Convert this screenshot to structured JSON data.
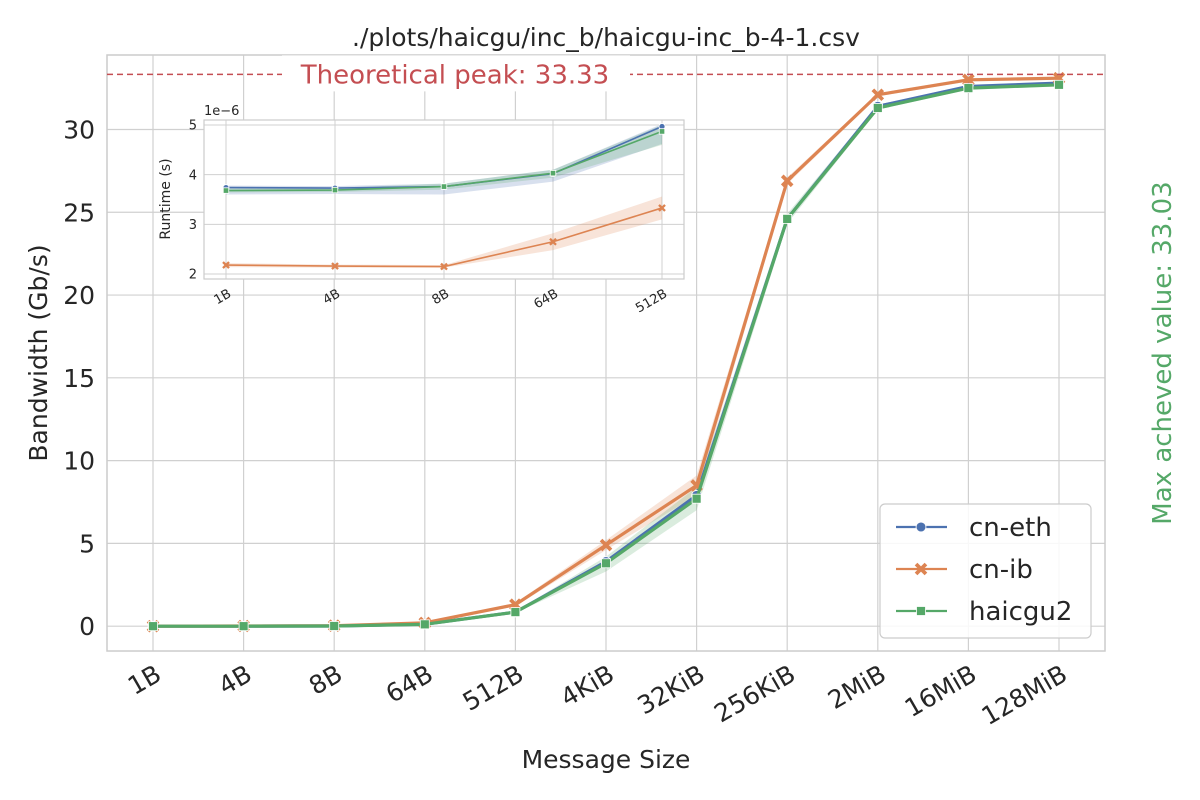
{
  "colors": {
    "cn-eth": "#4c72b0",
    "cn-ib": "#dd8452",
    "haicgu2": "#55a868",
    "peak": "#c44e52",
    "grid": "#d0d0d0",
    "spine": "#cccccc",
    "text": "#262626"
  },
  "chart_data": [
    {
      "type": "line",
      "title": "./plots/haicgu/inc_b/haicgu-inc_b-4-1.csv",
      "xlabel": "Message Size",
      "ylabel": "Bandwidth (Gb/s)",
      "categories": [
        "1B",
        "4B",
        "8B",
        "64B",
        "512B",
        "4KiB",
        "32KiB",
        "256KiB",
        "2MiB",
        "16MiB",
        "128MiB"
      ],
      "ylim": [
        -1.5,
        34.5
      ],
      "yticks": [
        0,
        5,
        10,
        15,
        20,
        25,
        30
      ],
      "grid": true,
      "legend_position": "bottom-right",
      "series": [
        {
          "name": "cn-eth",
          "marker": "circle",
          "values": [
            0.0,
            0.0,
            0.01,
            0.12,
            0.85,
            3.9,
            7.9,
            24.6,
            31.4,
            32.6,
            32.8
          ]
        },
        {
          "name": "cn-ib",
          "marker": "x",
          "values": [
            0.0,
            0.01,
            0.03,
            0.2,
            1.3,
            4.9,
            8.5,
            26.9,
            32.1,
            33.0,
            33.1
          ]
        },
        {
          "name": "haicgu2",
          "marker": "square",
          "values": [
            0.0,
            0.0,
            0.01,
            0.11,
            0.85,
            3.8,
            7.7,
            24.6,
            31.3,
            32.5,
            32.7
          ]
        }
      ],
      "bands": [
        {
          "series": "cn-ib",
          "low": [
            0.0,
            0.01,
            0.03,
            0.19,
            1.2,
            4.6,
            7.9,
            26.7,
            32.0,
            32.9,
            33.0
          ],
          "high": [
            0.0,
            0.01,
            0.03,
            0.21,
            1.4,
            5.2,
            9.1,
            27.1,
            32.2,
            33.1,
            33.2
          ]
        },
        {
          "series": "haicgu2",
          "low": [
            0.0,
            0.0,
            0.01,
            0.1,
            0.8,
            3.3,
            7.0,
            24.3,
            31.2,
            32.4,
            32.6
          ],
          "high": [
            0.0,
            0.0,
            0.01,
            0.12,
            0.9,
            4.2,
            8.4,
            24.9,
            31.5,
            32.7,
            32.9
          ]
        }
      ],
      "annotations": [
        {
          "text": "Theoretical peak: 33.33",
          "y": 33.33,
          "style": "dashed-line"
        },
        {
          "text": "Max acheved value: 33.03",
          "placement": "right-vertical"
        }
      ]
    },
    {
      "type": "line",
      "title": "",
      "xlabel": "",
      "ylabel": "Runtime (s)",
      "scale_label": "1e−6",
      "categories": [
        "1B",
        "4B",
        "8B",
        "64B",
        "512B"
      ],
      "ylim": [
        1.9,
        5.1
      ],
      "yticks": [
        2,
        3,
        4,
        5
      ],
      "grid": true,
      "series": [
        {
          "name": "cn-eth",
          "marker": "circle",
          "values": [
            3.74,
            3.73,
            3.76,
            4.02,
            4.97
          ]
        },
        {
          "name": "cn-ib",
          "marker": "x",
          "values": [
            2.18,
            2.16,
            2.15,
            2.65,
            3.33
          ]
        },
        {
          "name": "haicgu2",
          "marker": "square",
          "values": [
            3.68,
            3.69,
            3.76,
            4.03,
            4.87
          ]
        }
      ],
      "bands": [
        {
          "series": "cn-ib",
          "low": [
            2.14,
            2.13,
            2.13,
            2.48,
            3.1
          ],
          "high": [
            2.22,
            2.19,
            2.18,
            2.82,
            3.56
          ]
        },
        {
          "series": "cn-eth",
          "low": [
            3.6,
            3.61,
            3.6,
            3.86,
            4.62
          ],
          "high": [
            3.78,
            3.77,
            3.82,
            4.1,
            5.02
          ]
        },
        {
          "series": "haicgu2",
          "low": [
            3.64,
            3.65,
            3.7,
            3.94,
            4.6
          ],
          "high": [
            3.72,
            3.73,
            3.82,
            4.1,
            5.0
          ]
        }
      ]
    }
  ]
}
